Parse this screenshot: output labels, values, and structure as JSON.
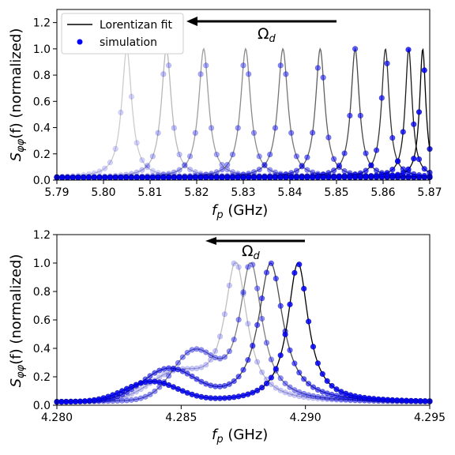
{
  "chart_data": [
    {
      "type": "line",
      "panel": "top",
      "xlabel_var": "f",
      "xlabel_sub": "p",
      "xlabel_unit": " (GHz)",
      "ylabel_pre": "S",
      "ylabel_sub": "φφ",
      "ylabel_post": "(f) (normalized)",
      "xlim": [
        5.79,
        5.87
      ],
      "ylim": [
        0.0,
        1.3
      ],
      "xticks": [
        "5.79",
        "5.80",
        "5.81",
        "5.82",
        "5.83",
        "5.84",
        "5.85",
        "5.86",
        "5.87"
      ],
      "yticks": [
        "0.0",
        "0.2",
        "0.4",
        "0.6",
        "0.8",
        "1.0",
        "1.2"
      ],
      "annotation": "Ω",
      "annotation_sub": "d",
      "legend": {
        "placement": "top-left",
        "fit_label": "Lorentizan fit",
        "sim_label": "simulation"
      },
      "peaks": [
        {
          "f0": 5.805,
          "gamma": 0.0013,
          "alpha": 0.2
        },
        {
          "f0": 5.8135,
          "gamma": 0.0013,
          "alpha": 0.28
        },
        {
          "f0": 5.8215,
          "gamma": 0.0013,
          "alpha": 0.38
        },
        {
          "f0": 5.8305,
          "gamma": 0.0013,
          "alpha": 0.46
        },
        {
          "f0": 5.8385,
          "gamma": 0.0013,
          "alpha": 0.54
        },
        {
          "f0": 5.8465,
          "gamma": 0.0012,
          "alpha": 0.62
        },
        {
          "f0": 5.854,
          "gamma": 0.0011,
          "alpha": 0.72
        },
        {
          "f0": 5.8605,
          "gamma": 0.001,
          "alpha": 0.8
        },
        {
          "f0": 5.8655,
          "gamma": 0.0009,
          "alpha": 0.9
        },
        {
          "f0": 5.8685,
          "gamma": 0.0008,
          "alpha": 1.0
        }
      ]
    },
    {
      "type": "line",
      "panel": "bottom",
      "xlabel_var": "f",
      "xlabel_sub": "p",
      "xlabel_unit": " (GHz)",
      "ylabel_pre": "S",
      "ylabel_sub": "φφ",
      "ylabel_post": "(f) (normalized)",
      "xlim": [
        4.28,
        4.295
      ],
      "ylim": [
        0.0,
        1.2
      ],
      "xticks": [
        "4.280",
        "4.285",
        "4.290",
        "4.295"
      ],
      "yticks": [
        "0.0",
        "0.2",
        "0.4",
        "0.6",
        "0.8",
        "1.0",
        "1.2"
      ],
      "annotation": "Ω",
      "annotation_sub": "d",
      "peaks": [
        {
          "f0": 4.2872,
          "gamma": 0.00055,
          "alpha": 0.25,
          "bump": {
            "f": 4.2848,
            "a": 0.18,
            "w": 0.0015
          }
        },
        {
          "f0": 4.2878,
          "gamma": 0.00055,
          "alpha": 0.5,
          "bump": {
            "f": 4.2855,
            "a": 0.32,
            "w": 0.0012
          }
        },
        {
          "f0": 4.2886,
          "gamma": 0.0006,
          "alpha": 0.7,
          "bump": {
            "f": 4.2845,
            "a": 0.22,
            "w": 0.0015
          }
        },
        {
          "f0": 4.2897,
          "gamma": 0.0005,
          "alpha": 1.0,
          "bump": {
            "f": 4.2838,
            "a": 0.14,
            "w": 0.0015
          }
        }
      ]
    }
  ]
}
